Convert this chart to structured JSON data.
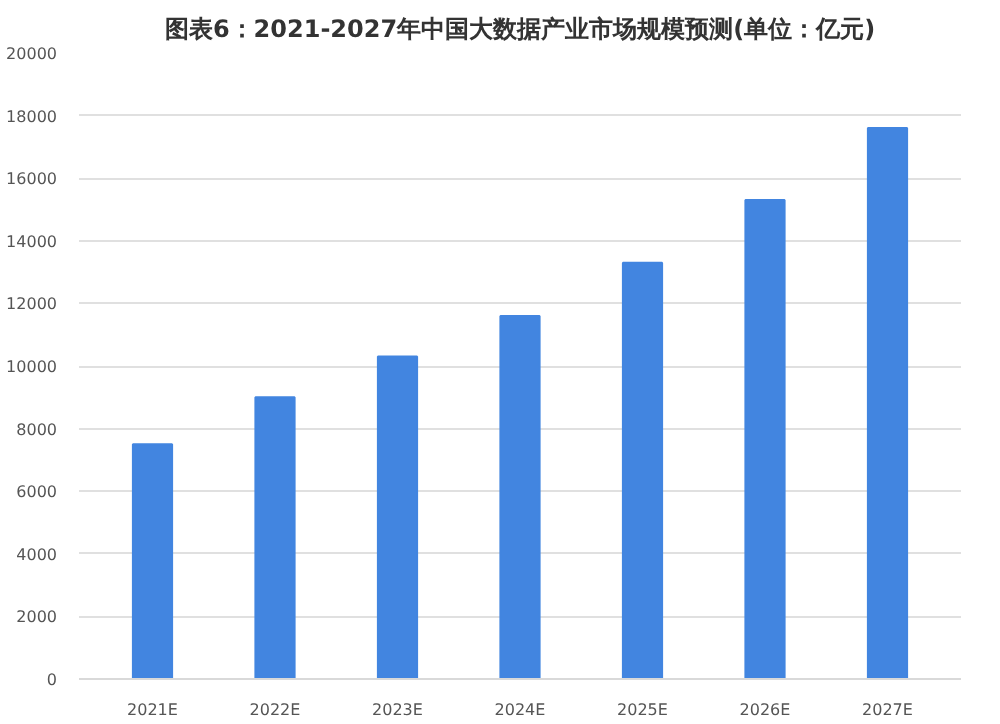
{
  "chart_data": {
    "type": "bar",
    "title": "图表6：2021-2027年中国大数据产业市场规模预测(单位：亿元)",
    "categories": [
      "2021E",
      "2022E",
      "2023E",
      "2024E",
      "2025E",
      "2026E",
      "2027E"
    ],
    "values": [
      7500,
      9000,
      10300,
      11600,
      13300,
      15300,
      17600
    ],
    "color": "#4285e0",
    "ylim": [
      0,
      20000
    ],
    "yticks": [
      0,
      2000,
      4000,
      6000,
      8000,
      10000,
      12000,
      14000,
      16000,
      18000,
      20000
    ],
    "grid": "y"
  }
}
